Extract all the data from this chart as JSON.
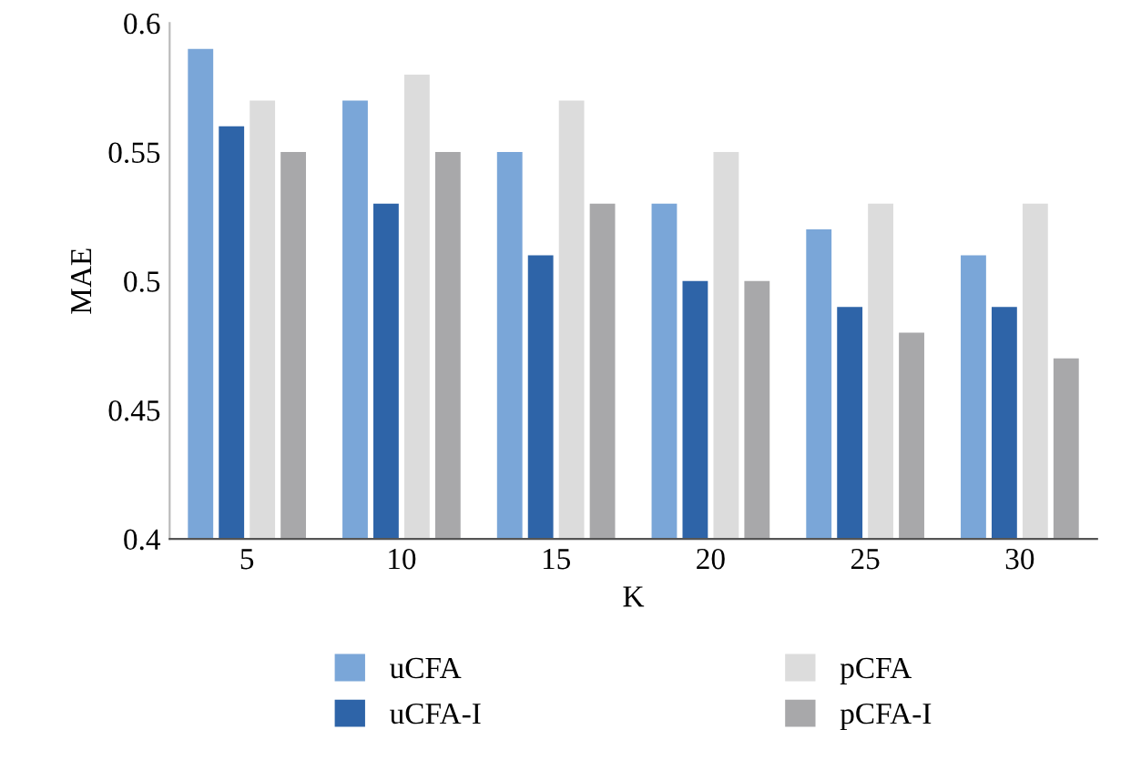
{
  "chart_data": {
    "type": "bar",
    "xlabel": "K",
    "ylabel": "MAE",
    "categories": [
      "5",
      "10",
      "15",
      "20",
      "25",
      "30"
    ],
    "series": [
      {
        "name": "uCFA",
        "color": "#7aa6d8",
        "values": [
          0.59,
          0.57,
          0.55,
          0.53,
          0.52,
          0.51
        ]
      },
      {
        "name": "uCFA-I",
        "color": "#2e64a8",
        "values": [
          0.56,
          0.53,
          0.51,
          0.5,
          0.49,
          0.49
        ]
      },
      {
        "name": "pCFA",
        "color": "#dcdcdc",
        "values": [
          0.57,
          0.58,
          0.57,
          0.55,
          0.53,
          0.53
        ]
      },
      {
        "name": "pCFA-I",
        "color": "#a8a8aa",
        "values": [
          0.55,
          0.55,
          0.53,
          0.5,
          0.48,
          0.47
        ]
      }
    ],
    "ylim": [
      0.4,
      0.6
    ],
    "yticks": [
      0.4,
      0.45,
      0.5,
      0.55,
      0.6
    ],
    "grid": false,
    "legend": "bottom"
  }
}
